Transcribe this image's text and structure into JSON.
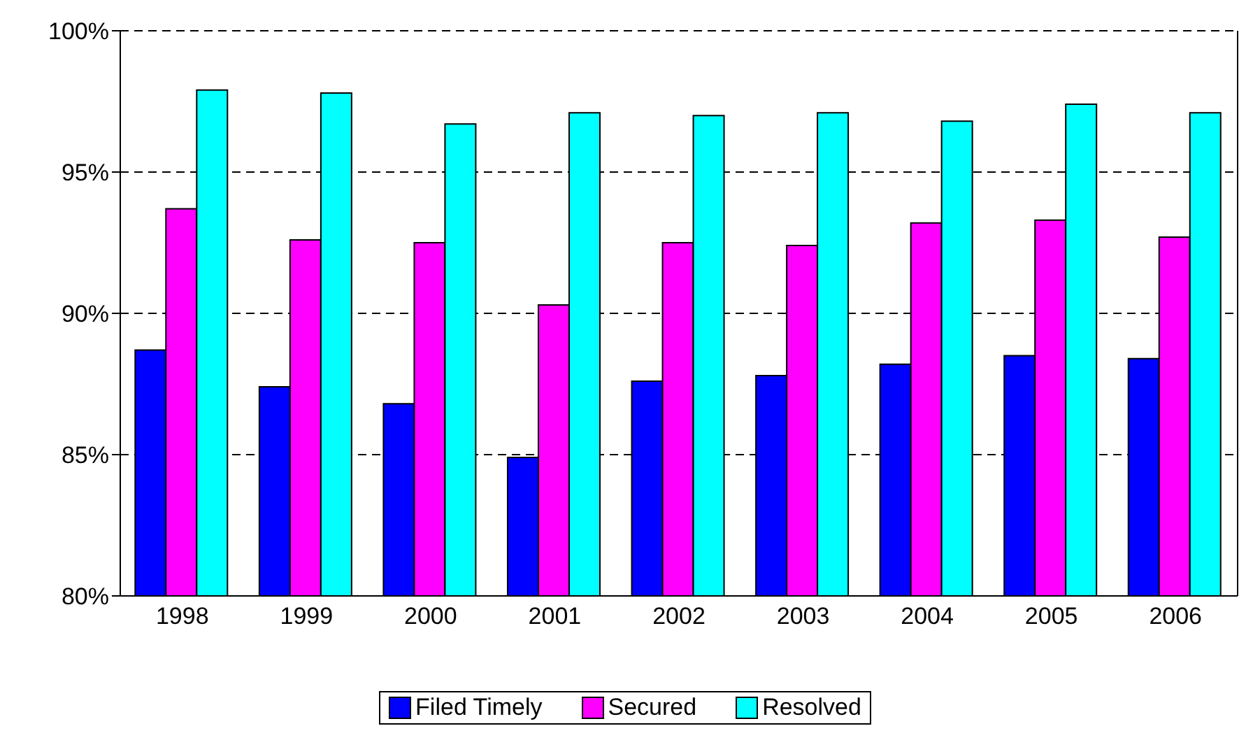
{
  "chart_data": {
    "type": "bar",
    "categories": [
      "1998",
      "1999",
      "2000",
      "2001",
      "2002",
      "2003",
      "2004",
      "2005",
      "2006"
    ],
    "series": [
      {
        "name": "Filed Timely",
        "color": "#0000ff",
        "values": [
          88.7,
          87.4,
          86.8,
          84.9,
          87.6,
          87.8,
          88.2,
          88.5,
          88.4
        ]
      },
      {
        "name": "Secured",
        "color": "#ff00ff",
        "values": [
          93.7,
          92.6,
          92.5,
          90.3,
          92.5,
          92.4,
          93.2,
          93.3,
          92.7
        ]
      },
      {
        "name": "Resolved",
        "color": "#00ffff",
        "values": [
          97.9,
          97.8,
          96.7,
          97.1,
          97.0,
          97.1,
          96.8,
          97.4,
          97.1
        ]
      }
    ],
    "ylim": [
      80,
      100
    ],
    "yticks": [
      {
        "value": 80,
        "label": "80%"
      },
      {
        "value": 85,
        "label": "85%"
      },
      {
        "value": 90,
        "label": "90%"
      },
      {
        "value": 95,
        "label": "95%"
      },
      {
        "value": 100,
        "label": "100%"
      }
    ],
    "grid": "y",
    "legend": "bottom"
  }
}
